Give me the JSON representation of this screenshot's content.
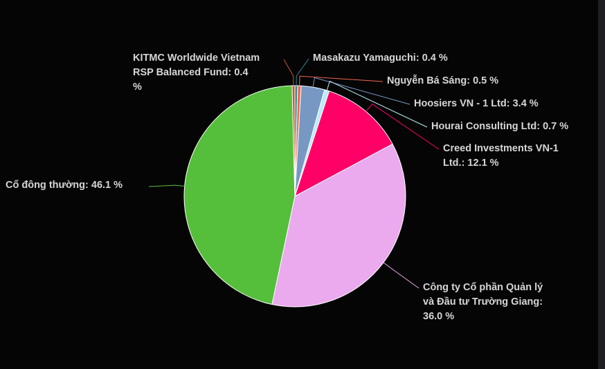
{
  "chart_data": {
    "type": "pie",
    "slices": [
      {
        "label": "Masakazu Yamaguchi",
        "value": 0.4,
        "text": "Masakazu Yamaguchi: 0.4 %",
        "color": "#2b8d96"
      },
      {
        "label": "Nguyễn Bá Sáng",
        "value": 0.5,
        "text": "Nguyễn Bá Sáng: 0.5 %",
        "color": "#f2674f"
      },
      {
        "label": "Hoosiers VN - 1 Ltd",
        "value": 3.4,
        "text": "Hoosiers VN - 1 Ltd: 3.4 %",
        "color": "#7798c3"
      },
      {
        "label": "Hourai Consulting Ltd",
        "value": 0.7,
        "text": "Hourai Consulting Ltd: 0.7 %",
        "color": "#b8ecf6"
      },
      {
        "label": "Creed Investments VN-1 Ltd.",
        "value": 12.1,
        "text": [
          "Creed Investments VN-1",
          "Ltd.: 12.1 %"
        ],
        "color": "#ff0066"
      },
      {
        "label": "Công ty Cổ phần Quản lý và Đầu tư Trường Giang",
        "value": 36.0,
        "text": [
          "Công ty Cổ phần Quản lý",
          "và Đầu tư Trường Giang:",
          "36.0 %"
        ],
        "color": "#eba9ee"
      },
      {
        "label": "Cổ đông thường",
        "value": 46.1,
        "text": "Cổ đông thường: 46.1 %",
        "color": "#55bf3b"
      },
      {
        "label": "KITMC Worldwide Vietnam RSP Balanced Fund",
        "value": 0.4,
        "text": [
          "KITMC Worldwide Vietnam",
          "RSP Balanced Fund: 0.4",
          "%"
        ],
        "color": "#c95a2f"
      }
    ],
    "colors": {
      "background": "#050505",
      "label_text": "#d6d6d6",
      "slice_border": "#ffffff"
    }
  }
}
